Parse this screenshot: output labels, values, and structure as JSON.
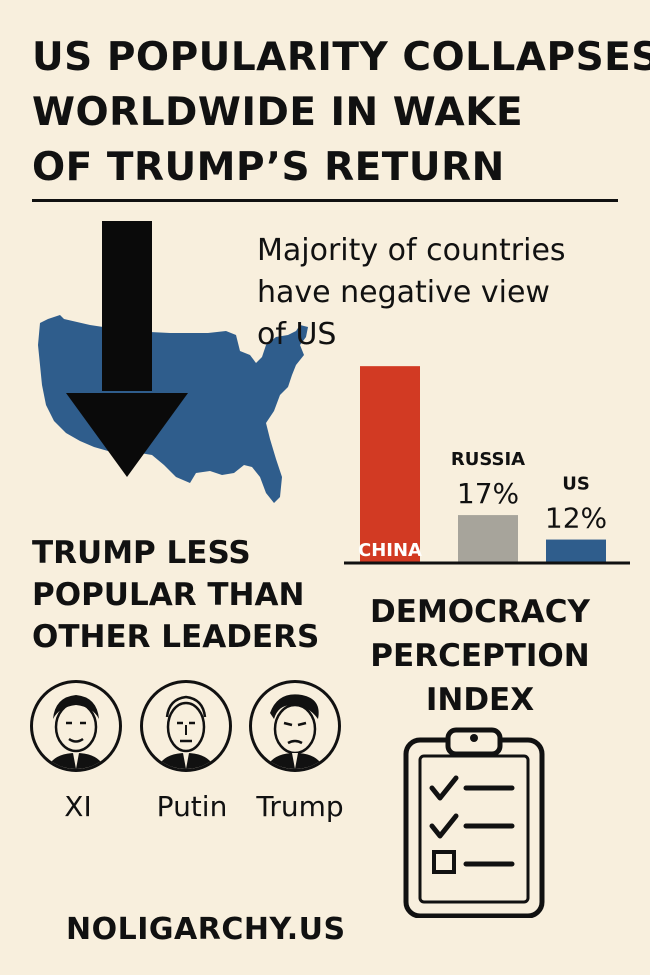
{
  "headline": {
    "lines": [
      "US POPULARITY COLLAPSES",
      "WORLDWIDE IN WAKE",
      "OF TRUMP’S RETURN"
    ]
  },
  "subhead": {
    "lines": [
      "Majority of countries",
      "have negative view",
      "of US"
    ]
  },
  "icons": {
    "arrow": "down-arrow-icon",
    "map": "usa-map-icon",
    "clipboard": "clipboard-checklist-icon"
  },
  "colors": {
    "background": "#f8efdd",
    "china_bar": "#d23a23",
    "russia_bar": "#a7a49b",
    "us_bar": "#2f5d8c",
    "map": "#2f5d8c"
  },
  "chart_data": {
    "type": "bar",
    "categories": [
      "CHINA",
      "RUSSIA",
      "US"
    ],
    "values": [
      null,
      17,
      12
    ],
    "value_labels": [
      "",
      "17%",
      "12%"
    ],
    "colors": [
      "#d23a23",
      "#a7a49b",
      "#2f5d8c"
    ],
    "bar_heights_relative": [
      0.96,
      0.23,
      0.11
    ],
    "category_label_inside": [
      true,
      false,
      false
    ]
  },
  "leaders_section": {
    "title_lines": [
      "TRUMP LESS",
      "POPULAR THAN",
      "OTHER LEADERS"
    ],
    "leaders": [
      {
        "name": "XI"
      },
      {
        "name": "Putin"
      },
      {
        "name": "Trump"
      }
    ]
  },
  "index_section": {
    "title_lines": [
      "DEMOCRACY",
      "PERCEPTION",
      "INDEX"
    ]
  },
  "footer": {
    "site": "NOLIGARCHY.US"
  }
}
